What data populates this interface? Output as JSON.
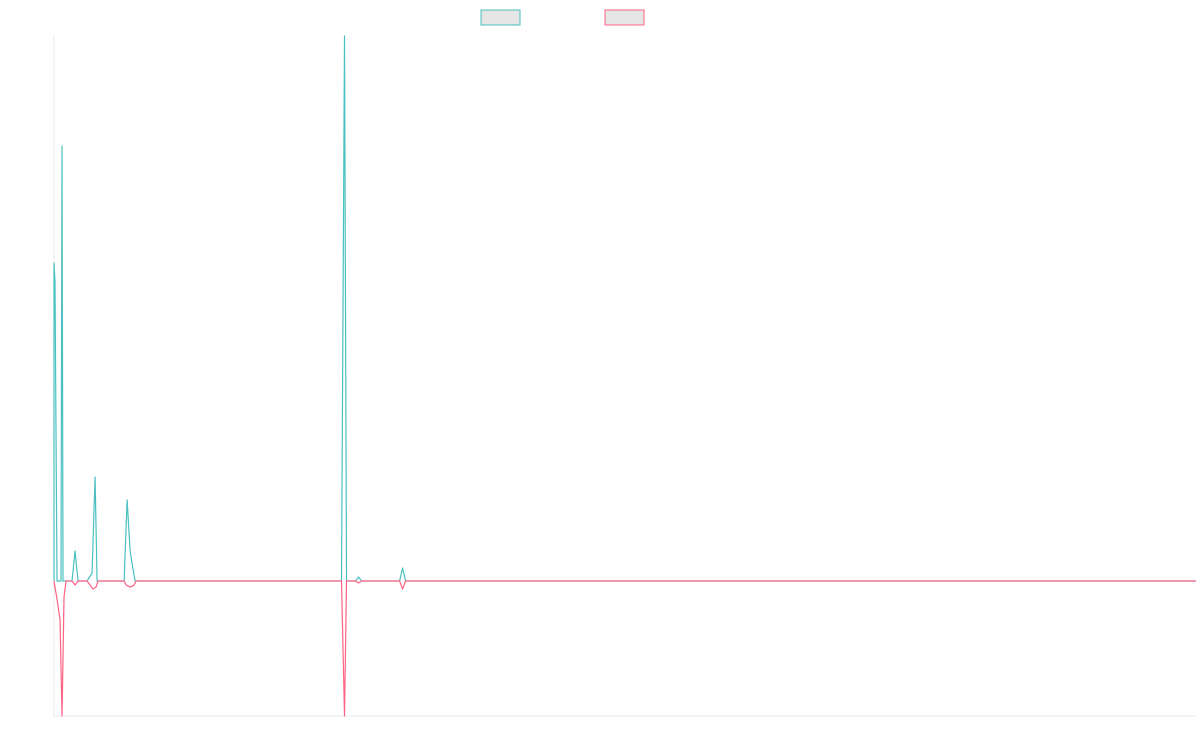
{
  "chart_data": {
    "type": "line",
    "title": "",
    "xlabel": "",
    "ylabel": "",
    "legend": {
      "placement": "top-center",
      "show_labels": false
    },
    "grid": false,
    "xlim": [
      0,
      1140
    ],
    "ylim": [
      -134,
      545
    ],
    "series": [
      {
        "color": "#4bc0c0",
        "fill": "#e6e6e6",
        "points": [
          [
            0,
            0
          ],
          [
            0,
            318
          ],
          [
            1,
            300
          ],
          [
            3,
            0
          ],
          [
            7,
            0
          ],
          [
            8,
            435
          ],
          [
            9,
            0
          ],
          [
            18,
            0
          ],
          [
            21,
            30
          ],
          [
            24,
            0
          ],
          [
            33,
            0
          ],
          [
            38,
            8
          ],
          [
            41,
            104
          ],
          [
            43,
            0
          ],
          [
            70,
            0
          ],
          [
            73,
            81
          ],
          [
            76,
            30
          ],
          [
            79,
            11
          ],
          [
            81,
            0
          ],
          [
            287,
            0
          ],
          [
            290,
            545
          ],
          [
            292,
            0
          ],
          [
            301,
            0
          ],
          [
            304,
            4
          ],
          [
            307,
            0
          ],
          [
            345,
            0
          ],
          [
            348,
            13
          ],
          [
            351,
            0
          ],
          [
            1140,
            0
          ]
        ]
      },
      {
        "color": "#ff6384",
        "fill": "#e6e6e6",
        "points": [
          [
            0,
            0
          ],
          [
            3,
            -18
          ],
          [
            6,
            -38
          ],
          [
            8,
            -134
          ],
          [
            10,
            -16
          ],
          [
            12,
            0
          ],
          [
            18,
            0
          ],
          [
            21,
            -4
          ],
          [
            24,
            0
          ],
          [
            33,
            0
          ],
          [
            36,
            -4
          ],
          [
            39,
            -8
          ],
          [
            42,
            -6
          ],
          [
            44,
            0
          ],
          [
            70,
            0
          ],
          [
            72,
            -4
          ],
          [
            76,
            -6
          ],
          [
            80,
            -4
          ],
          [
            82,
            0
          ],
          [
            287,
            0
          ],
          [
            290,
            -134
          ],
          [
            292,
            0
          ],
          [
            301,
            0
          ],
          [
            304,
            -2
          ],
          [
            307,
            0
          ],
          [
            345,
            0
          ],
          [
            348,
            -8
          ],
          [
            351,
            0
          ],
          [
            1140,
            0
          ]
        ]
      }
    ]
  }
}
